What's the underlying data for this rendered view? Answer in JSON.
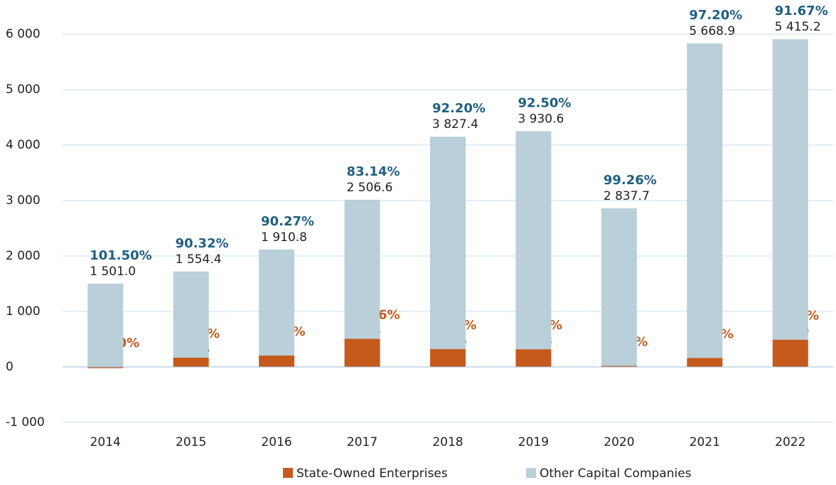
{
  "chart_data": {
    "type": "stacked-bar",
    "categories": [
      "2014",
      "2015",
      "2016",
      "2017",
      "2018",
      "2019",
      "2020",
      "2021",
      "2022"
    ],
    "series": [
      {
        "name": "State-Owned Enterprises",
        "color": "#c55a1c",
        "label_color": "#c55a1c",
        "values": [
          -22.2,
          166.6,
          206.1,
          508.4,
          323.6,
          318.8,
          21.2,
          163.1,
          491.9
        ],
        "share_labels": [
          "-1.50%",
          "9.68%",
          "9.73%",
          "16.86%",
          "7.80%",
          "7.50%",
          "0.74%",
          "2.80%",
          "8.33%"
        ]
      },
      {
        "name": "Other Capital Companies",
        "color": "#b9cfd9",
        "label_color": "#1f5f82",
        "values": [
          1501.0,
          1554.4,
          1910.8,
          2506.6,
          3827.4,
          3930.6,
          2837.7,
          5668.9,
          5415.2
        ],
        "value_labels": [
          "1 501.0",
          "1 554.4",
          "1 910.8",
          "2 506.6",
          "3 827.4",
          "3 930.6",
          "2 837.7",
          "5 668.9",
          "5 415.2"
        ],
        "share_labels": [
          "101.50%",
          "90.32%",
          "90.27%",
          "83.14%",
          "92.20%",
          "92.50%",
          "99.26%",
          "97.20%",
          "91.67%"
        ]
      }
    ],
    "ylim": [
      -1000,
      6000
    ],
    "yticks": [
      {
        "value": -1000,
        "label": "-1 000"
      },
      0,
      {
        "value": 1000,
        "label": "1 000"
      },
      {
        "value": 2000,
        "label": "2 000"
      },
      {
        "value": 3000,
        "label": "3 000"
      },
      {
        "value": 4000,
        "label": "4 000"
      },
      {
        "value": 5000,
        "label": "5 000"
      },
      {
        "value": 6000,
        "label": "6 000"
      }
    ],
    "grid": true,
    "legend": "bottom"
  }
}
